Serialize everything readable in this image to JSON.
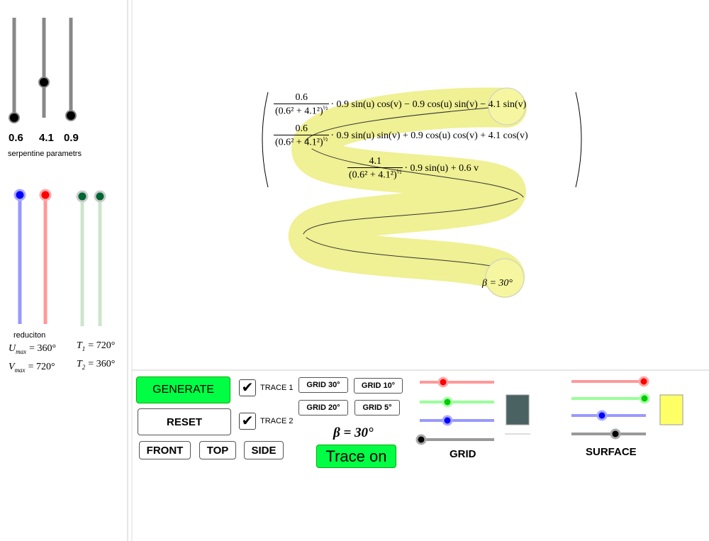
{
  "left_panel": {
    "slider_values": [
      "0.6",
      "4.1",
      "0.9"
    ],
    "slider_caption": "serpentine parametrs",
    "reduction_caption": "reduciton",
    "formulas": [
      {
        "symbol": "U",
        "subscript": "max",
        "value": "= 360°"
      },
      {
        "symbol": "T",
        "subscript": "1",
        "value": "= 720°"
      },
      {
        "symbol": "V",
        "subscript": "max",
        "value": "= 720°"
      },
      {
        "symbol": "T",
        "subscript": "2",
        "value": "= 360°"
      }
    ]
  },
  "view3d": {
    "matrix": {
      "rows": [
        {
          "numerator": "0.6",
          "denominator": "(0.6² + 4.1²)",
          "exponent": "½",
          "expression": "· 0.9 sin(u) cos(v) − 0.9 cos(u) sin(v) − 4.1 sin(v)"
        },
        {
          "numerator": "0.6",
          "denominator": "(0.6² + 4.1²)",
          "exponent": "½",
          "expression": "· 0.9 sin(u) sin(v) + 0.9 cos(u) cos(v) + 4.1 cos(v)"
        },
        {
          "numerator": "4.1",
          "denominator": "(0.6² + 4.1²)",
          "exponent": "½",
          "expression": "· 0.9 sin(u) + 0.6 v"
        }
      ]
    },
    "angle_label": "β = 30°"
  },
  "controls": {
    "generate": "GENERATE",
    "reset": "RESET",
    "front": "FRONT",
    "top": "TOP",
    "side": "SIDE",
    "trace1": "TRACE 1",
    "trace2": "TRACE 2",
    "grid_buttons": [
      "GRID 30°",
      "GRID 10°",
      "GRID 20°",
      "GRID 5°"
    ],
    "beta": "β = 30°",
    "trace_on": "Trace on",
    "grid_label": "GRID",
    "surface_label": "SURFACE"
  }
}
